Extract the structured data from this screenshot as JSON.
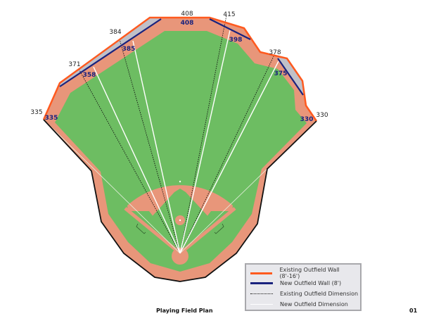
{
  "title": "Playing Field Plan",
  "page_number": "01",
  "colors": {
    "existing_wall": "#ff5a1f",
    "new_wall": "#1a237e",
    "grass": "#6dbd62",
    "dirt": "#e8967a",
    "removed_area": "#c0c0c8"
  },
  "existing_dimensions": [
    "335",
    "371",
    "384",
    "408",
    "415",
    "378",
    "330"
  ],
  "new_dimensions": [
    "335",
    "358",
    "385",
    "408",
    "398",
    "375",
    "330"
  ],
  "legend": [
    {
      "label": "Existing Outfield Wall (8'-16')",
      "style": "orange-solid"
    },
    {
      "label": "New Outfield Wall (8')",
      "style": "navy-solid"
    },
    {
      "label": "Existing Outfield Dimension",
      "style": "black-dotted"
    },
    {
      "label": "New Outfield Dimension",
      "style": "white-solid"
    }
  ]
}
